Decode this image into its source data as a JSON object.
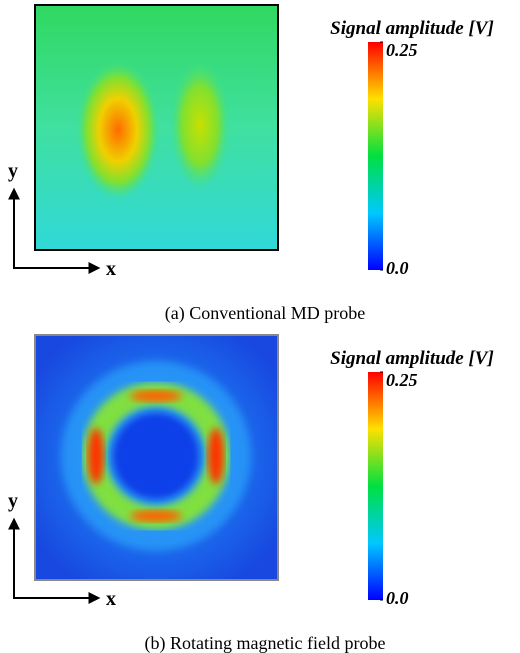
{
  "panels": [
    {
      "colorbar": {
        "title": "Signal amplitude [V]",
        "ticks": [
          0.25,
          {
            "value": 0,
            "label": "0.0"
          }
        ]
      },
      "axis_labels": {
        "x": "x",
        "y": "y"
      },
      "caption": "(a) Conventional MD probe"
    },
    {
      "colorbar": {
        "title": "Signal amplitude [V]",
        "ticks": [
          0.25,
          {
            "value": 0,
            "label": "0.0"
          }
        ]
      },
      "axis_labels": {
        "x": "x",
        "y": "y"
      },
      "caption": "(b) Rotating magnetic field probe"
    }
  ]
}
